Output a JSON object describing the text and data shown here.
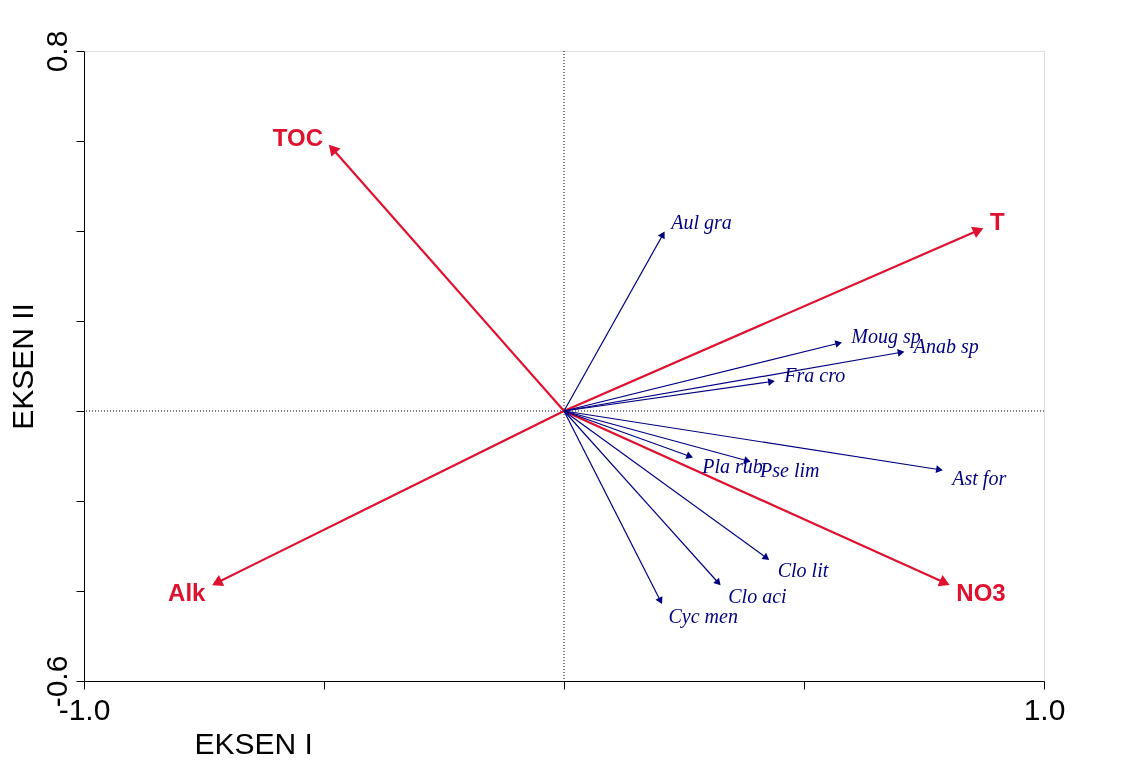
{
  "chart_data": {
    "type": "line",
    "xlabel": "EKSEN I",
    "ylabel": "EKSEN II",
    "xlim": [
      -1.0,
      1.0
    ],
    "ylim": [
      -0.6,
      0.8
    ],
    "xticks": [
      {
        "value": -1.0,
        "label": "-1.0"
      },
      {
        "value": -0.5,
        "label": null
      },
      {
        "value": 0,
        "label": null
      },
      {
        "value": 0.5,
        "label": null
      },
      {
        "value": 1.0,
        "label": "1.0"
      }
    ],
    "yticks": [
      {
        "value": -0.6,
        "label": "-0.6"
      },
      {
        "value": -0.4,
        "label": null
      },
      {
        "value": -0.2,
        "label": null
      },
      {
        "value": 0,
        "label": null
      },
      {
        "value": 0.2,
        "label": null
      },
      {
        "value": 0.4,
        "label": null
      },
      {
        "value": 0.6,
        "label": null
      },
      {
        "value": 0.8,
        "label": "0.8"
      }
    ],
    "grid": false,
    "line_style": "solid",
    "ref_lines": [
      {
        "axis": "x",
        "value": 0,
        "label": null,
        "color": "#000000",
        "line_style": "dotted"
      },
      {
        "axis": "y",
        "value": 0,
        "label": null,
        "color": "#000000",
        "line_style": "dotted"
      }
    ],
    "series": [
      {
        "name": "TOC",
        "color": "#e0102f",
        "x": [
          0,
          -0.48
        ],
        "values": [
          0,
          0.58
        ]
      },
      {
        "name": "T",
        "color": "#e0102f",
        "x": [
          0,
          0.86
        ],
        "values": [
          0,
          0.4
        ]
      },
      {
        "name": "Alk",
        "color": "#e0102f",
        "x": [
          0,
          -0.72
        ],
        "values": [
          0,
          -0.38
        ]
      },
      {
        "name": "NO3",
        "color": "#e0102f",
        "x": [
          0,
          0.79
        ],
        "values": [
          0,
          -0.38
        ]
      },
      {
        "name": "Aul gra",
        "color": "#000080",
        "x": [
          0,
          0.205
        ],
        "values": [
          0,
          0.39
        ]
      },
      {
        "name": "Moug sp",
        "color": "#000080",
        "x": [
          0,
          0.57
        ],
        "values": [
          0,
          0.15
        ]
      },
      {
        "name": "Anab sp",
        "color": "#000080",
        "x": [
          0,
          0.7
        ],
        "values": [
          0,
          0.13
        ]
      },
      {
        "name": "Fra cro",
        "color": "#000080",
        "x": [
          0,
          0.43
        ],
        "values": [
          0,
          0.065
        ]
      },
      {
        "name": "Pla rub",
        "color": "#000080",
        "x": [
          0,
          0.26
        ],
        "values": [
          0,
          -0.1
        ]
      },
      {
        "name": "Pse lim",
        "color": "#000080",
        "x": [
          0,
          0.38
        ],
        "values": [
          0,
          -0.11
        ]
      },
      {
        "name": "Ast for",
        "color": "#000080",
        "x": [
          0,
          0.78
        ],
        "values": [
          0,
          -0.13
        ]
      },
      {
        "name": "Clo lit",
        "color": "#000080",
        "x": [
          0,
          0.42
        ],
        "values": [
          0,
          -0.325
        ]
      },
      {
        "name": "Clo aci",
        "color": "#000080",
        "x": [
          0,
          0.32
        ],
        "values": [
          0,
          -0.38
        ]
      },
      {
        "name": "Cyc men",
        "color": "#000080",
        "x": [
          0,
          0.2
        ],
        "values": [
          0,
          -0.42
        ]
      }
    ]
  }
}
